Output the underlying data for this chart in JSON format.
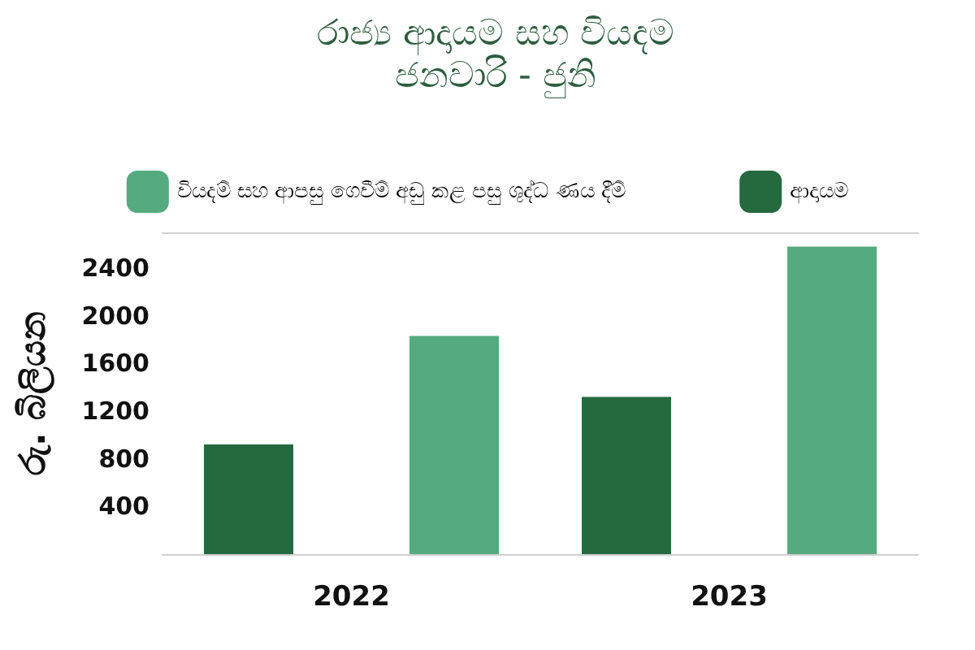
{
  "chart_data": {
    "type": "bar",
    "title": "රාජ්‍ය ආදායම සහ වියදම",
    "subtitle": "ජනවාරි - ජුනි",
    "ylabel": "රු. බිලියන",
    "categories": [
      "2022",
      "2023"
    ],
    "series": [
      {
        "name": "ආදායම",
        "color": "#256a3e",
        "values": [
          920,
          1320
        ]
      },
      {
        "name": "වියදම් සහ ආපසු ගෙවීම් අඩු කළ පසු ශුද්ධ ණය දීම්",
        "color": "#56aa7f",
        "values": [
          1830,
          2580
        ]
      }
    ],
    "ylim": [
      0,
      2700
    ],
    "yticks": [
      400,
      800,
      1200,
      1600,
      2000,
      2400
    ],
    "grid": false,
    "legend": "top"
  }
}
